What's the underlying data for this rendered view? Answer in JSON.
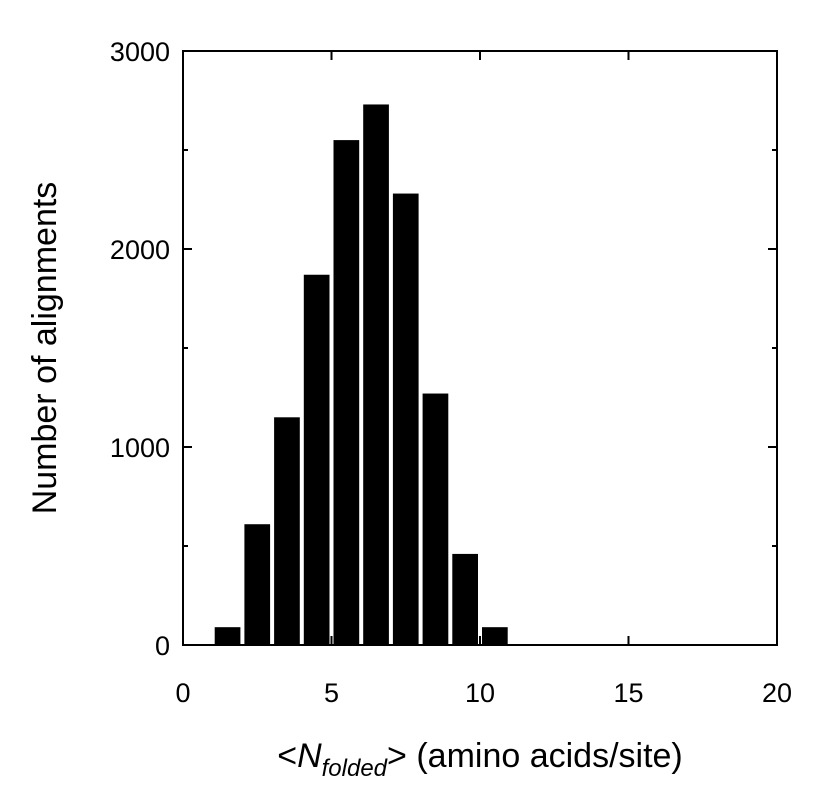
{
  "chart_data": {
    "type": "bar",
    "title": "",
    "xlabel": {
      "prefix": "<",
      "symbol": "N",
      "subscript": "folded",
      "suffix": ">",
      "units": " (amino acids/site)"
    },
    "ylabel": "Number of alignments",
    "xlim": [
      0,
      20
    ],
    "ylim": [
      0,
      3000
    ],
    "x_ticks": [
      0,
      5,
      10,
      15,
      20
    ],
    "y_ticks": [
      0,
      1000,
      2000,
      3000
    ],
    "y_minor_ticks": [
      500,
      1500,
      2500
    ],
    "bin_width": 1,
    "bins": [
      {
        "x0": 1,
        "x1": 2,
        "value": 90
      },
      {
        "x0": 2,
        "x1": 3,
        "value": 610
      },
      {
        "x0": 3,
        "x1": 4,
        "value": 1150
      },
      {
        "x0": 4,
        "x1": 5,
        "value": 1870
      },
      {
        "x0": 5,
        "x1": 6,
        "value": 2550
      },
      {
        "x0": 6,
        "x1": 7,
        "value": 2730
      },
      {
        "x0": 7,
        "x1": 8,
        "value": 2280
      },
      {
        "x0": 8,
        "x1": 9,
        "value": 1270
      },
      {
        "x0": 9,
        "x1": 10,
        "value": 460
      },
      {
        "x0": 10,
        "x1": 11,
        "value": 90
      }
    ],
    "grid": false,
    "legend": "none"
  }
}
